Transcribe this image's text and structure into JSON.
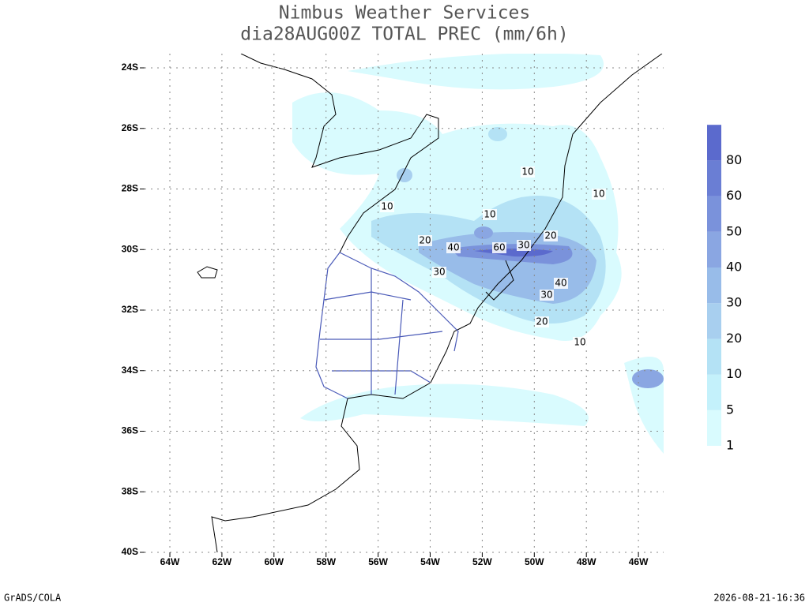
{
  "title": [
    "Nimbus Weather Services",
    "dia28AUG00Z TOTAL PREC (mm/6h)"
  ],
  "lat_labels": [
    "24S",
    "26S",
    "28S",
    "30S",
    "32S",
    "34S",
    "36S",
    "38S",
    "40S"
  ],
  "lon_labels": [
    "64W",
    "62W",
    "60W",
    "58W",
    "56W",
    "54W",
    "52W",
    "50W",
    "48W",
    "46W"
  ],
  "colorbar": {
    "labels": [
      1,
      5,
      10,
      20,
      30,
      40,
      50,
      60,
      80
    ],
    "colors": [
      "#d9fbfe",
      "#c4f1fb",
      "#b4e2f5",
      "#a8cfef",
      "#98bce9",
      "#8aa6e2",
      "#7a92db",
      "#6a7ed4",
      "#5b6acd"
    ]
  },
  "contour_labels": [
    10,
    10,
    10,
    10,
    20,
    40,
    60,
    30,
    20,
    30,
    40,
    30,
    20,
    10
  ],
  "footer": {
    "left": "GrADS/COLA",
    "right": "2026-08-21-16:36"
  }
}
